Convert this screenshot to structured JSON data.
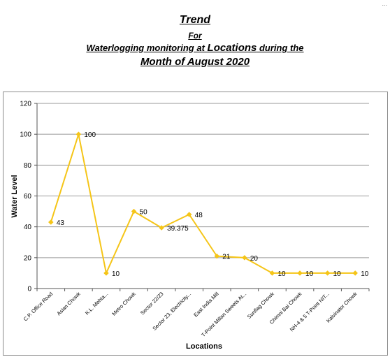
{
  "header": {
    "title": "Trend",
    "line2": "For",
    "line3_prefix": "Waterlogging monitoring at ",
    "line3_emph": "Locations",
    "line3_suffix": " during the",
    "line4": "Month of August 2020",
    "corner": "..."
  },
  "colors": {
    "series": "#f5c518",
    "grid": "#9a9a9a"
  },
  "chart_data": {
    "type": "line",
    "title": "",
    "xlabel": "Locations",
    "ylabel": "Water Level",
    "ylim": [
      0,
      120
    ],
    "yticks": [
      0,
      20,
      40,
      60,
      80,
      100,
      120
    ],
    "grid": true,
    "legend": "none",
    "categories": [
      "C.P. Office Road",
      "Asian Chowk",
      "K.L. Mehta...",
      "Metro Chowk",
      "Sector 22/23",
      "Sector 23, Electricity...",
      "East India Mill",
      "T-Point Millan Sweets At...",
      "Sunflag Chowk",
      "Chimni Bai Chowk",
      "NH-4 & 5 T-Point NIT...",
      "Kalvinator Chowk"
    ],
    "series": [
      {
        "values": [
          43,
          100,
          10,
          50,
          39.375,
          48,
          21,
          20,
          10,
          10,
          10,
          10
        ],
        "labels": [
          "43",
          "100",
          "10",
          "50",
          "39.375",
          "48",
          "21",
          "20",
          "10",
          "10",
          "10",
          "10"
        ]
      }
    ]
  }
}
